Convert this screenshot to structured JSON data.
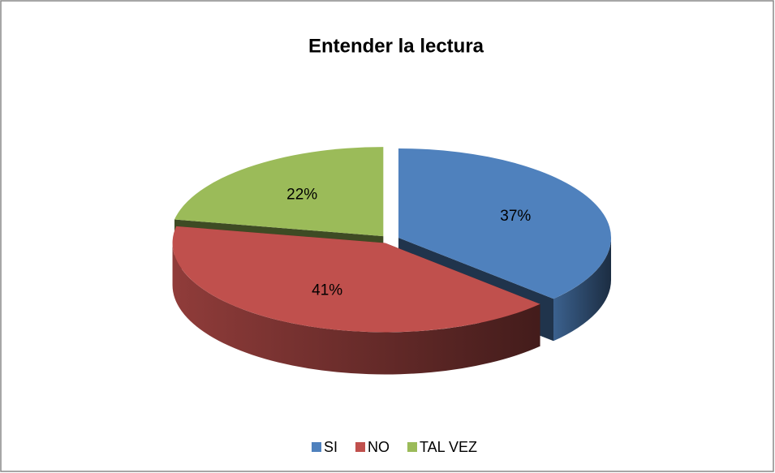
{
  "chart_data": {
    "type": "pie",
    "title": "Entender la lectura",
    "categories": [
      "SI",
      "NO",
      "TAL VEZ"
    ],
    "values": [
      37,
      41,
      22
    ],
    "value_labels": [
      "37%",
      "41%",
      "22%"
    ],
    "colors": [
      "#4f81bd",
      "#c0504d",
      "#9bbb59"
    ],
    "legend": "bottom"
  }
}
